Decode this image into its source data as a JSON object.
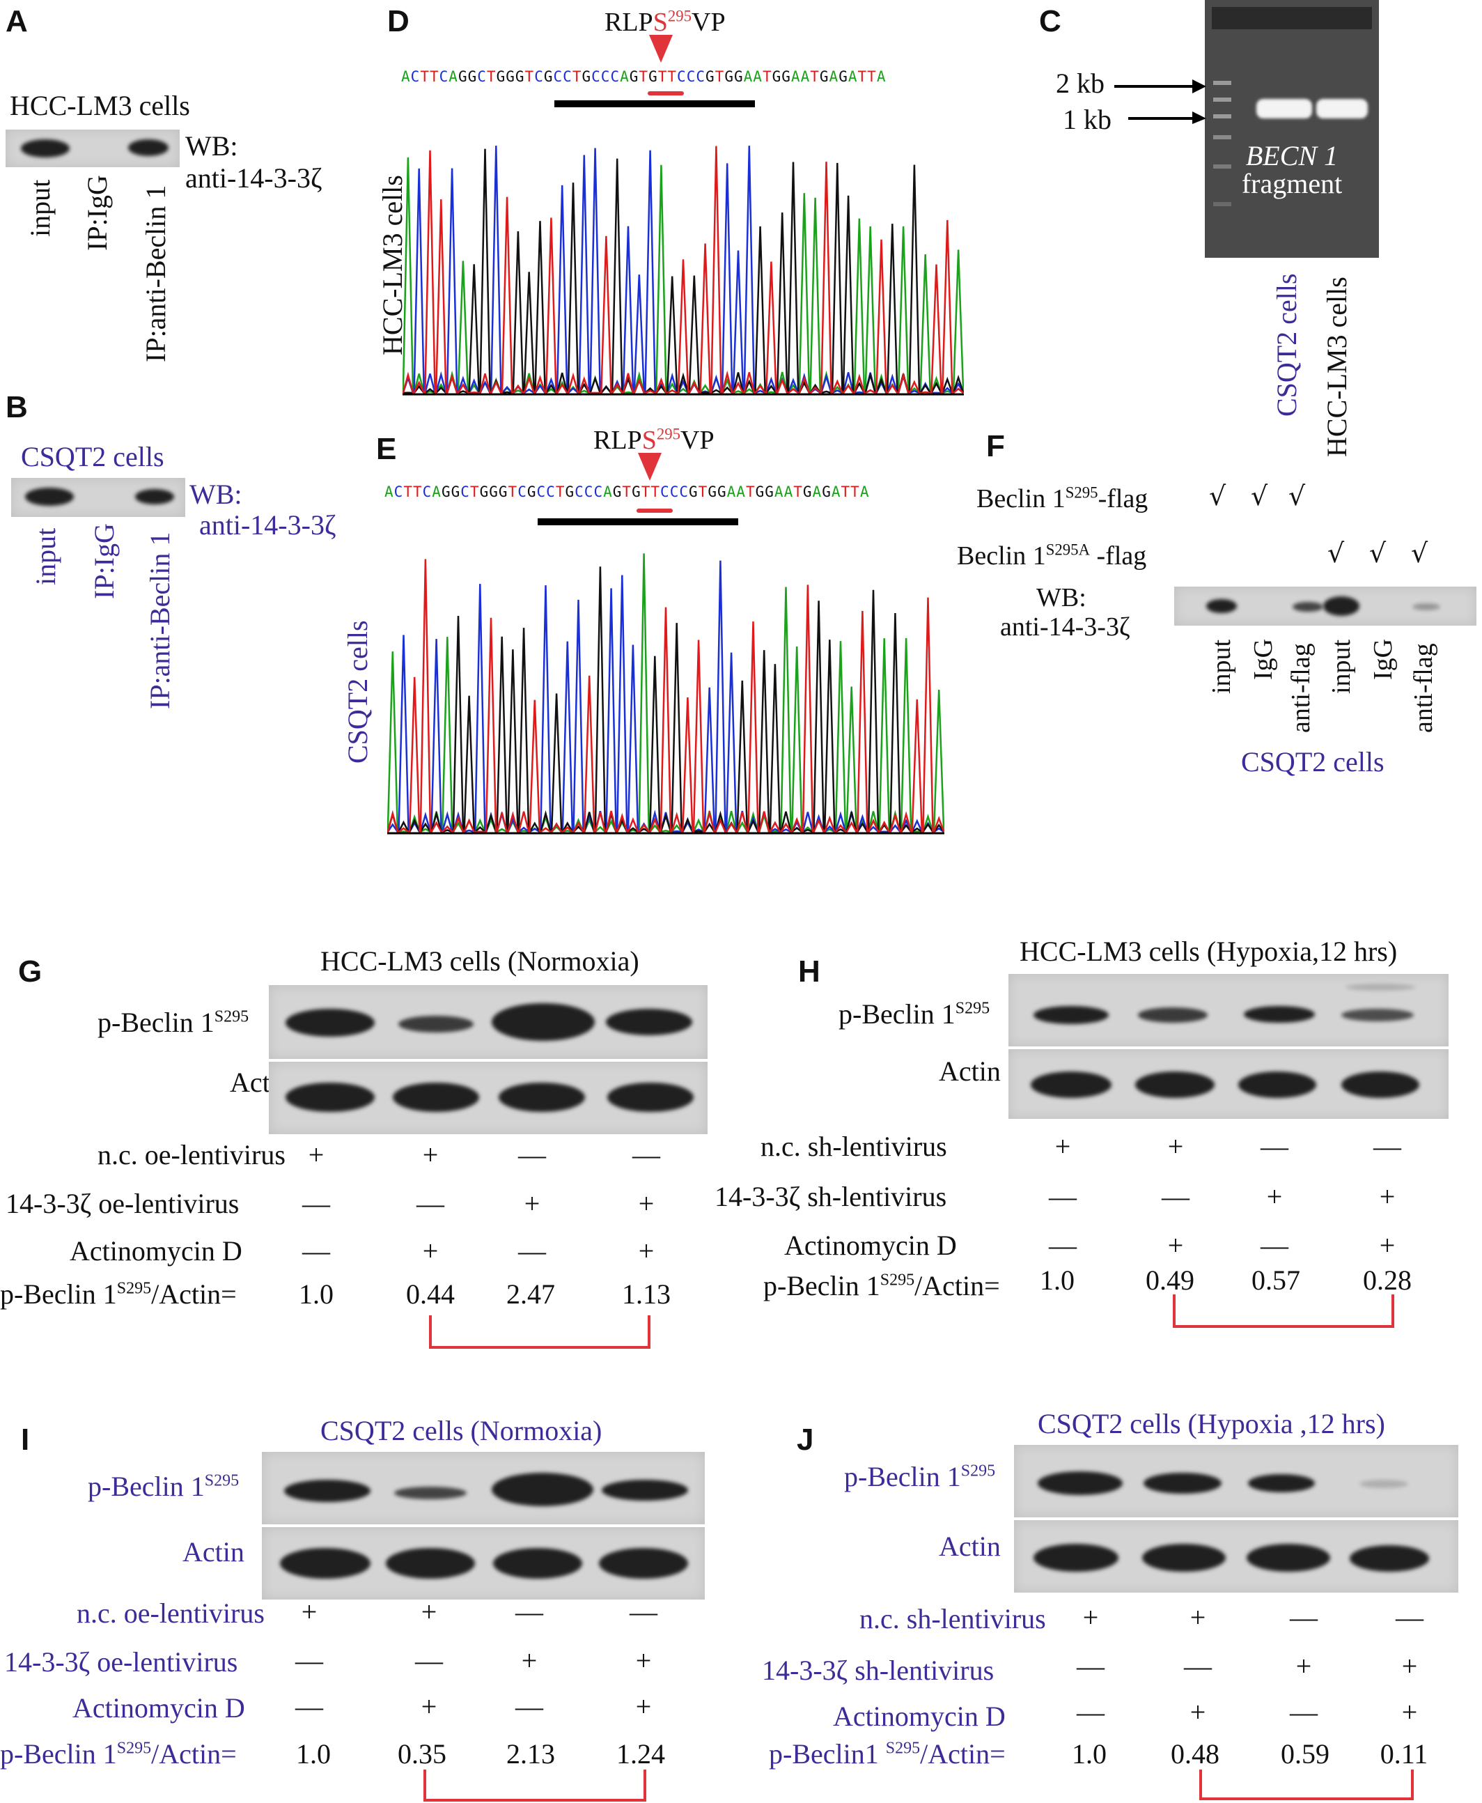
{
  "panels": {
    "A": {
      "letter": "A",
      "title": "HCC-LM3 cells",
      "wb": "WB:",
      "antibody": "anti-14-3-3ζ",
      "lanes": [
        "input",
        "IP:IgG",
        "IP:anti-Beclin 1"
      ]
    },
    "B": {
      "letter": "B",
      "title": "CSQT2 cells",
      "wb": "WB:",
      "antibody": "anti-14-3-3ζ",
      "lanes": [
        "input",
        "IP:IgG",
        "IP:anti-Beclin 1"
      ]
    },
    "C": {
      "letter": "C",
      "marker_2kb": "2 kb",
      "marker_1kb": "1 kb",
      "fragment_gene": "BECN 1",
      "fragment_word": "fragment",
      "lanes": [
        "CSQT2 cells",
        "HCC-LM3 cells"
      ]
    },
    "D": {
      "letter": "D",
      "motif_pre": "RLP",
      "motif_site": "S",
      "motif_sup": "295",
      "motif_post": "VP",
      "sequence": "ACTTCAGGCTGGGTCGCCTGCCCAGTGTTCCCGTGGAATGGAATGAGATTA",
      "ylabel": "HCC-LM3 cells"
    },
    "E": {
      "letter": "E",
      "motif_pre": "RLP",
      "motif_site": "S",
      "motif_sup": "295",
      "motif_post": "VP",
      "sequence": "ACTTCAGGCTGGGTCGCCTGCCCAGTGTTCCCGTGGAATGGAATGAGATTA",
      "ylabel": "CSQT2 cells"
    },
    "F": {
      "letter": "F",
      "row1_label": "Beclin 1",
      "row1_sup": "S295",
      "row1_suffix": "-flag",
      "row2_label": "Beclin 1",
      "row2_sup": "S295A",
      "row2_suffix": " -flag",
      "check": "√",
      "wb": "WB:",
      "antibody": "anti-14-3-3ζ",
      "lanes": [
        "input",
        "IgG",
        "anti-flag",
        "input",
        "IgG",
        "anti-flag"
      ],
      "footer": "CSQT2 cells"
    },
    "G": {
      "letter": "G",
      "title": "HCC-LM3 cells (Normoxia)",
      "blot1": "p-Beclin 1",
      "blot1_sup": "S295",
      "blot2": "Actin",
      "rows": [
        {
          "label": "n.c. oe-lentivirus",
          "signs": [
            "+",
            "+",
            "—",
            "—"
          ]
        },
        {
          "label": "14-3-3ζ oe-lentivirus",
          "signs": [
            "—",
            "—",
            "+",
            "+"
          ]
        },
        {
          "label": "Actinomycin D",
          "signs": [
            "—",
            "+",
            "—",
            "+"
          ]
        }
      ],
      "ratio_pre": "p-Beclin 1",
      "ratio_sup": "S295",
      "ratio_post": "/Actin=",
      "ratios": [
        "1.0",
        "0.44",
        "2.47",
        "1.13"
      ]
    },
    "H": {
      "letter": "H",
      "title": "HCC-LM3 cells (Hypoxia,12 hrs)",
      "blot1": "p-Beclin 1",
      "blot1_sup": "S295",
      "blot2": "Actin",
      "rows": [
        {
          "label": "n.c. sh-lentivirus",
          "signs": [
            "+",
            "+",
            "—",
            "—"
          ]
        },
        {
          "label": "14-3-3ζ sh-lentivirus",
          "signs": [
            "—",
            "—",
            "+",
            "+"
          ]
        },
        {
          "label": "Actinomycin D",
          "signs": [
            "—",
            "+",
            "—",
            "+"
          ]
        }
      ],
      "ratio_pre": "p-Beclin 1",
      "ratio_sup": "S295",
      "ratio_post": "/Actin=",
      "ratios": [
        "1.0",
        "0.49",
        "0.57",
        "0.28"
      ]
    },
    "I": {
      "letter": "I",
      "title": "CSQT2 cells (Normoxia)",
      "blot1": "p-Beclin 1",
      "blot1_sup": "S295",
      "blot2": "Actin",
      "rows": [
        {
          "label": "n.c. oe-lentivirus",
          "signs": [
            "+",
            "+",
            "—",
            "—"
          ]
        },
        {
          "label": "14-3-3ζ oe-lentivirus",
          "signs": [
            "—",
            "—",
            "+",
            "+"
          ]
        },
        {
          "label": "Actinomycin D",
          "signs": [
            "—",
            "+",
            "—",
            "+"
          ]
        }
      ],
      "ratio_pre": "p-Beclin 1",
      "ratio_sup": "S295",
      "ratio_post": "/Actin=",
      "ratios": [
        "1.0",
        "0.35",
        "2.13",
        "1.24"
      ]
    },
    "J": {
      "letter": "J",
      "title": "CSQT2 cells (Hypoxia ,12 hrs)",
      "blot1": "p-Beclin 1",
      "blot1_sup": "S295",
      "blot2": "Actin",
      "rows": [
        {
          "label": "n.c. sh-lentivirus",
          "signs": [
            "+",
            "+",
            "—",
            "—"
          ]
        },
        {
          "label": "14-3-3ζ sh-lentivirus",
          "signs": [
            "—",
            "—",
            "+",
            "+"
          ]
        },
        {
          "label": "Actinomycin D",
          "signs": [
            "—",
            "+",
            "—",
            "+"
          ]
        }
      ],
      "ratio_pre": "p-Beclin1 ",
      "ratio_sup": "S295",
      "ratio_post": "/Actin=",
      "ratios": [
        "1.0",
        "0.48",
        "0.59",
        "0.11"
      ]
    }
  },
  "colors": {
    "purple_text": "#3d2b9a",
    "highlight_red": "#e0343a",
    "trace_a": "#1aa31a",
    "trace_c": "#1a2fd6",
    "trace_g": "#111111",
    "trace_t": "#e01a1a"
  }
}
